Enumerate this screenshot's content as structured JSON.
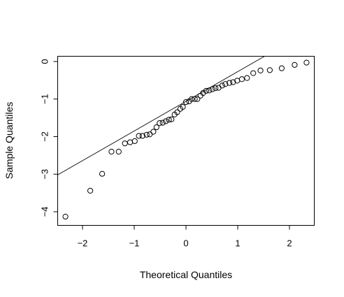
{
  "chart_data": {
    "type": "scatter",
    "title": "",
    "xlabel": "Theoretical Quantiles",
    "ylabel": "Sample Quantiles",
    "xlim": [
      -2.5,
      2.5
    ],
    "ylim": [
      -4.3,
      0.15
    ],
    "x_ticks": [
      "−2",
      "−1",
      "0",
      "1",
      "2"
    ],
    "x_tick_values": [
      -2,
      -1,
      0,
      1,
      2
    ],
    "y_ticks": [
      "−4",
      "−3",
      "−2",
      "−1",
      "0"
    ],
    "y_tick_values": [
      -4,
      -3,
      -2,
      -1,
      0
    ],
    "grid": false,
    "legend": "none",
    "reference_line": {
      "intercept": -1.06,
      "slope": 0.79
    },
    "points": [
      {
        "x": -2.33,
        "y": -4.13
      },
      {
        "x": -1.85,
        "y": -3.44
      },
      {
        "x": -1.62,
        "y": -2.99
      },
      {
        "x": -1.44,
        "y": -2.4
      },
      {
        "x": -1.3,
        "y": -2.4
      },
      {
        "x": -1.18,
        "y": -2.18
      },
      {
        "x": -1.08,
        "y": -2.15
      },
      {
        "x": -0.99,
        "y": -2.12
      },
      {
        "x": -0.91,
        "y": -1.98
      },
      {
        "x": -0.84,
        "y": -1.98
      },
      {
        "x": -0.76,
        "y": -1.95
      },
      {
        "x": -0.7,
        "y": -1.94
      },
      {
        "x": -0.63,
        "y": -1.87
      },
      {
        "x": -0.57,
        "y": -1.75
      },
      {
        "x": -0.51,
        "y": -1.64
      },
      {
        "x": -0.45,
        "y": -1.63
      },
      {
        "x": -0.39,
        "y": -1.59
      },
      {
        "x": -0.33,
        "y": -1.55
      },
      {
        "x": -0.28,
        "y": -1.54
      },
      {
        "x": -0.22,
        "y": -1.41
      },
      {
        "x": -0.17,
        "y": -1.35
      },
      {
        "x": -0.11,
        "y": -1.26
      },
      {
        "x": -0.06,
        "y": -1.21
      },
      {
        "x": 0.0,
        "y": -1.08
      },
      {
        "x": 0.06,
        "y": -1.06
      },
      {
        "x": 0.11,
        "y": -1.0
      },
      {
        "x": 0.17,
        "y": -1.0
      },
      {
        "x": 0.22,
        "y": -1.0
      },
      {
        "x": 0.28,
        "y": -0.91
      },
      {
        "x": 0.33,
        "y": -0.84
      },
      {
        "x": 0.39,
        "y": -0.78
      },
      {
        "x": 0.45,
        "y": -0.77
      },
      {
        "x": 0.51,
        "y": -0.74
      },
      {
        "x": 0.57,
        "y": -0.71
      },
      {
        "x": 0.63,
        "y": -0.7
      },
      {
        "x": 0.7,
        "y": -0.64
      },
      {
        "x": 0.76,
        "y": -0.6
      },
      {
        "x": 0.84,
        "y": -0.57
      },
      {
        "x": 0.91,
        "y": -0.55
      },
      {
        "x": 0.99,
        "y": -0.51
      },
      {
        "x": 1.08,
        "y": -0.47
      },
      {
        "x": 1.18,
        "y": -0.44
      },
      {
        "x": 1.3,
        "y": -0.31
      },
      {
        "x": 1.44,
        "y": -0.24
      },
      {
        "x": 1.62,
        "y": -0.23
      },
      {
        "x": 1.85,
        "y": -0.18
      },
      {
        "x": 2.1,
        "y": -0.09
      },
      {
        "x": 2.33,
        "y": -0.03
      }
    ]
  }
}
